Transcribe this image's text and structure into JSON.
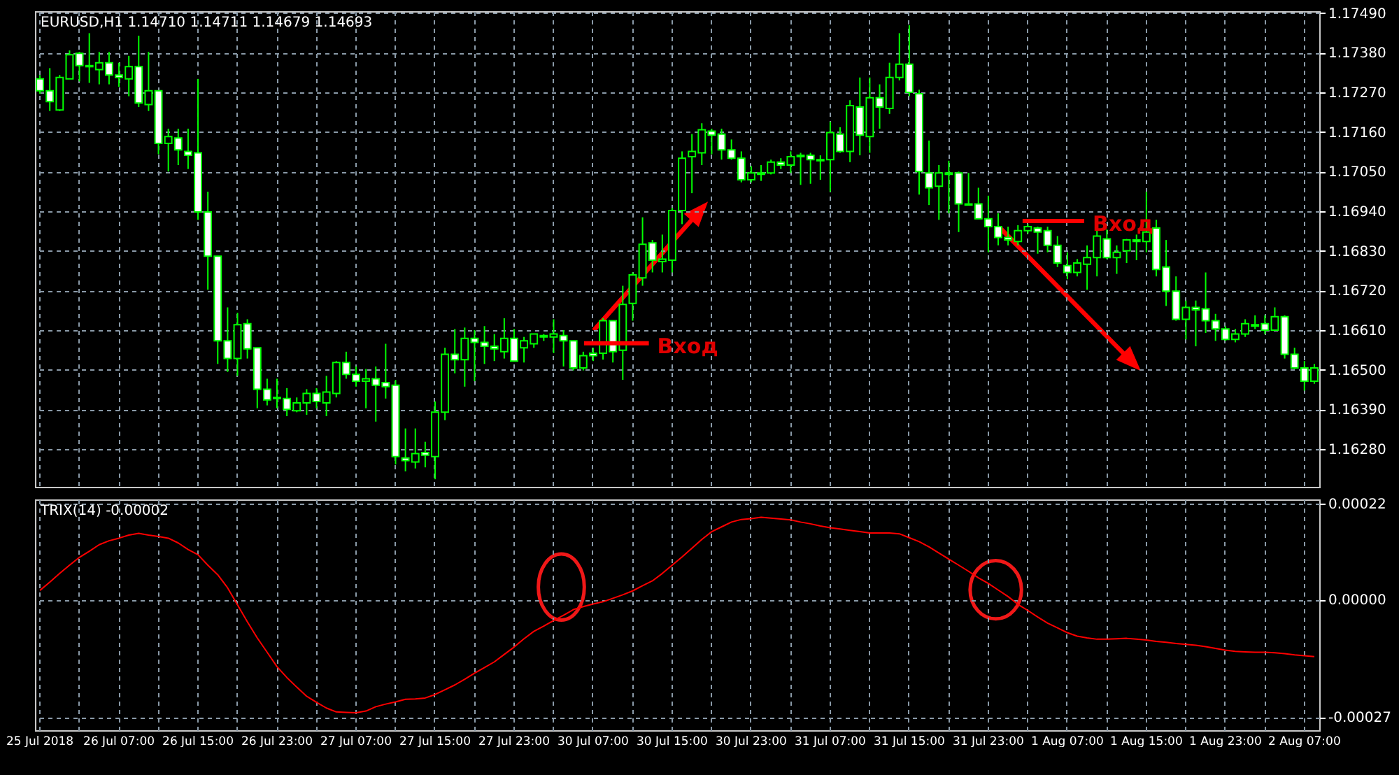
{
  "chart_data": [
    {
      "type": "candlestick",
      "title": "EURUSD,H1  1.14710 1.14711 1.14679 1.14693",
      "color": "#00ff00",
      "categories": [
        "25 Jul 2018",
        null,
        null,
        null,
        null,
        null,
        null,
        null,
        "26 Jul 07:00",
        null,
        null,
        null,
        null,
        null,
        null,
        null,
        "26 Jul 15:00",
        null,
        null,
        null,
        null,
        null,
        null,
        null,
        "26 Jul 23:00",
        null,
        null,
        null,
        null,
        null,
        null,
        null,
        "27 Jul 07:00",
        null,
        null,
        null,
        null,
        null,
        null,
        null,
        "27 Jul 15:00",
        null,
        null,
        null,
        null,
        null,
        null,
        null,
        "27 Jul 23:00",
        null,
        null,
        null,
        null,
        null,
        null,
        null,
        "30 Jul 07:00",
        null,
        null,
        null,
        null,
        null,
        null,
        null,
        "30 Jul 15:00",
        null,
        null,
        null,
        null,
        null,
        null,
        null,
        "30 Jul 23:00",
        null,
        null,
        null,
        null,
        null,
        null,
        null,
        "31 Jul 07:00",
        null,
        null,
        null,
        null,
        null,
        null,
        null,
        "31 Jul 15:00",
        null,
        null,
        null,
        null,
        null,
        null,
        null,
        "31 Jul 23:00",
        null,
        null,
        null,
        null,
        null,
        null,
        null,
        "1 Aug 07:00",
        null,
        null,
        null,
        null,
        null,
        null,
        null,
        "1 Aug 15:00",
        null,
        null,
        null,
        null,
        null,
        null,
        null,
        "1 Aug 23:00",
        null,
        null,
        null,
        null,
        null,
        null,
        null,
        "2 Aug 07:00",
        null
      ],
      "ohlc": [
        [
          1.17307,
          1.17318,
          1.17266,
          1.17274
        ],
        [
          1.17274,
          1.17337,
          1.17218,
          1.17244
        ],
        [
          1.17221,
          1.17318,
          1.17218,
          1.17311
        ],
        [
          1.17307,
          1.17386,
          1.17307,
          1.17374
        ],
        [
          1.17378,
          1.17382,
          1.173,
          1.17344
        ],
        [
          1.17344,
          1.17434,
          1.17296,
          1.17341
        ],
        [
          1.17333,
          1.17382,
          1.17292,
          1.17352
        ],
        [
          1.17352,
          1.17382,
          1.17292,
          1.17318
        ],
        [
          1.17318,
          1.17352,
          1.17285,
          1.17311
        ],
        [
          1.17307,
          1.17371,
          1.17259,
          1.17341
        ],
        [
          1.17341,
          1.17427,
          1.17229,
          1.1724
        ],
        [
          1.17236,
          1.17382,
          1.17218,
          1.17274
        ],
        [
          1.17274,
          1.17274,
          1.17098,
          1.17128
        ],
        [
          1.17128,
          1.17169,
          1.1705,
          1.17147
        ],
        [
          1.17143,
          1.17169,
          1.17068,
          1.1711
        ],
        [
          1.17106,
          1.17169,
          1.17057,
          1.17095
        ],
        [
          1.17102,
          1.17307,
          1.16916,
          1.16938
        ],
        [
          1.16938,
          1.16994,
          1.16722,
          1.16815
        ],
        [
          1.16815,
          1.16815,
          1.16516,
          1.1658
        ],
        [
          1.1658,
          1.16673,
          1.16494,
          1.16531
        ],
        [
          1.16531,
          1.16658,
          1.16483,
          1.16625
        ],
        [
          1.16628,
          1.1664,
          1.16531,
          1.16558
        ],
        [
          1.16561,
          1.16561,
          1.16393,
          1.16446
        ],
        [
          1.16446,
          1.16475,
          1.16401,
          1.16416
        ],
        [
          1.16423,
          1.16475,
          1.16393,
          1.1642
        ],
        [
          1.1642,
          1.16449,
          1.16371,
          1.1639
        ],
        [
          1.16386,
          1.16423,
          1.16382,
          1.16408
        ],
        [
          1.16408,
          1.16446,
          1.16375,
          1.16434
        ],
        [
          1.16434,
          1.16449,
          1.16393,
          1.16412
        ],
        [
          1.16408,
          1.16483,
          1.16371,
          1.16438
        ],
        [
          1.16434,
          1.16524,
          1.16423,
          1.1652
        ],
        [
          1.1652,
          1.1655,
          1.16475,
          1.16487
        ],
        [
          1.16487,
          1.16509,
          1.16453,
          1.16468
        ],
        [
          1.16468,
          1.16502,
          1.16393,
          1.16475
        ],
        [
          1.16475,
          1.16509,
          1.16356,
          1.16457
        ],
        [
          1.16464,
          1.16572,
          1.1642,
          1.16453
        ],
        [
          1.16457,
          1.16472,
          1.16237,
          1.16259
        ],
        [
          1.16255,
          1.16337,
          1.16218,
          1.16248
        ],
        [
          1.16244,
          1.16337,
          1.16226,
          1.16267
        ],
        [
          1.1627,
          1.163,
          1.16229,
          1.16263
        ],
        [
          1.16259,
          1.16412,
          1.16196,
          1.16382
        ],
        [
          1.16382,
          1.16561,
          1.1636,
          1.16543
        ],
        [
          1.16543,
          1.16613,
          1.1649,
          1.16528
        ],
        [
          1.16528,
          1.16617,
          1.16453,
          1.16587
        ],
        [
          1.16587,
          1.1661,
          1.16468,
          1.16576
        ],
        [
          1.16576,
          1.16621,
          1.16516,
          1.16565
        ],
        [
          1.16565,
          1.16599,
          1.16524,
          1.16558
        ],
        [
          1.1655,
          1.16643,
          1.16531,
          1.16587
        ],
        [
          1.16587,
          1.16613,
          1.16524,
          1.16524
        ],
        [
          1.16561,
          1.16591,
          1.1652,
          1.1658
        ],
        [
          1.16572,
          1.16599,
          1.16561,
          1.16599
        ],
        [
          1.16595,
          1.16599,
          1.1658,
          1.16591
        ],
        [
          1.16591,
          1.1664,
          1.16546,
          1.16599
        ],
        [
          1.16595,
          1.1661,
          1.16509,
          1.1658
        ],
        [
          1.1658,
          1.1658,
          1.16498,
          1.16505
        ],
        [
          1.16505,
          1.1655,
          1.16498,
          1.16539
        ],
        [
          1.16546,
          1.16561,
          1.16524,
          1.16539
        ],
        [
          1.16546,
          1.16643,
          1.16528,
          1.16636
        ],
        [
          1.16636,
          1.16636,
          1.1652,
          1.1655
        ],
        [
          1.16554,
          1.16733,
          1.16472,
          1.16681
        ],
        [
          1.16684,
          1.1677,
          1.16636,
          1.16763
        ],
        [
          1.16755,
          1.16923,
          1.16733,
          1.16848
        ],
        [
          1.16852,
          1.1686,
          1.1677,
          1.16804
        ],
        [
          1.168,
          1.16875,
          1.1677,
          1.16807
        ],
        [
          1.16804,
          1.16949,
          1.1677,
          1.16942
        ],
        [
          1.16942,
          1.17106,
          1.16904,
          1.17087
        ],
        [
          1.17091,
          1.17154,
          1.1699,
          1.17106
        ],
        [
          1.17102,
          1.17184,
          1.17068,
          1.17166
        ],
        [
          1.17162,
          1.17169,
          1.17098,
          1.17151
        ],
        [
          1.17154,
          1.17169,
          1.17083,
          1.1711
        ],
        [
          1.1711,
          1.17139,
          1.17083,
          1.17087
        ],
        [
          1.17087,
          1.17106,
          1.1702,
          1.17027
        ],
        [
          1.17027,
          1.17065,
          1.1702,
          1.17046
        ],
        [
          1.17042,
          1.17068,
          1.17024,
          1.17046
        ],
        [
          1.17046,
          1.17083,
          1.17042,
          1.17076
        ],
        [
          1.17076,
          1.17087,
          1.17057,
          1.17068
        ],
        [
          1.17068,
          1.17106,
          1.17046,
          1.17091
        ],
        [
          1.17095,
          1.17102,
          1.17013,
          1.17091
        ],
        [
          1.17095,
          1.17102,
          1.17016,
          1.17083
        ],
        [
          1.17083,
          1.17095,
          1.17027,
          1.1708
        ],
        [
          1.17083,
          1.17188,
          1.16994,
          1.17158
        ],
        [
          1.17154,
          1.17173,
          1.17102,
          1.17106
        ],
        [
          1.17106,
          1.17248,
          1.17076,
          1.17233
        ],
        [
          1.17229,
          1.17311,
          1.17095,
          1.17151
        ],
        [
          1.17147,
          1.17311,
          1.17102,
          1.17255
        ],
        [
          1.17255,
          1.17292,
          1.17169,
          1.17229
        ],
        [
          1.17225,
          1.17352,
          1.1721,
          1.17311
        ],
        [
          1.17311,
          1.17434,
          1.17303,
          1.17348
        ],
        [
          1.17348,
          1.17456,
          1.17259,
          1.1727
        ],
        [
          1.17266,
          1.17277,
          1.16986,
          1.1705
        ],
        [
          1.17046,
          1.17136,
          1.16957,
          1.17005
        ],
        [
          1.17009,
          1.17068,
          1.16916,
          1.17046
        ],
        [
          1.17046,
          1.1708,
          1.16934,
          1.17042
        ],
        [
          1.17046,
          1.1705,
          1.16882,
          1.1696
        ],
        [
          1.1696,
          1.17046,
          1.16957,
          1.16957
        ],
        [
          1.1696,
          1.17005,
          1.16919,
          1.16919
        ],
        [
          1.16919,
          1.16983,
          1.16826,
          1.16897
        ],
        [
          1.16897,
          1.16934,
          1.16845,
          1.16867
        ],
        [
          1.16867,
          1.16897,
          1.16845,
          1.1686
        ],
        [
          1.16856,
          1.16901,
          1.16845,
          1.16886
        ],
        [
          1.16886,
          1.16904,
          1.16878,
          1.16897
        ],
        [
          1.16893,
          1.16897,
          1.16822,
          1.16882
        ],
        [
          1.16886,
          1.16897,
          1.16826,
          1.16845
        ],
        [
          1.16845,
          1.16871,
          1.16785,
          1.16796
        ],
        [
          1.16789,
          1.16826,
          1.16751,
          1.1677
        ],
        [
          1.1677,
          1.16807,
          1.16759,
          1.16796
        ],
        [
          1.16793,
          1.16845,
          1.16722,
          1.16811
        ],
        [
          1.16811,
          1.16897,
          1.16759,
          1.16871
        ],
        [
          1.16863,
          1.16889,
          1.16807,
          1.16811
        ],
        [
          1.16811,
          1.16845,
          1.16766,
          1.16826
        ],
        [
          1.1683,
          1.16863,
          1.16796,
          1.1686
        ],
        [
          1.1686,
          1.16875,
          1.16804,
          1.16856
        ],
        [
          1.16856,
          1.16994,
          1.16826,
          1.16882
        ],
        [
          1.16893,
          1.16916,
          1.16759,
          1.16778
        ],
        [
          1.16785,
          1.1686,
          1.16677,
          1.16718
        ],
        [
          1.16718,
          1.16759,
          1.16636,
          1.1664
        ],
        [
          1.1664,
          1.16692,
          1.16584,
          1.16673
        ],
        [
          1.16673,
          1.16692,
          1.16565,
          1.16666
        ],
        [
          1.16669,
          1.1677,
          1.16602,
          1.16636
        ],
        [
          1.16636,
          1.16655,
          1.1658,
          1.16613
        ],
        [
          1.16613,
          1.16621,
          1.1658,
          1.16584
        ],
        [
          1.16584,
          1.16613,
          1.16576,
          1.16599
        ],
        [
          1.16599,
          1.1664,
          1.16591,
          1.16628
        ],
        [
          1.16625,
          1.16651,
          1.16613,
          1.16621
        ],
        [
          1.16628,
          1.16651,
          1.16599,
          1.1661
        ],
        [
          1.1661,
          1.16673,
          1.1661,
          1.16647
        ],
        [
          1.16647,
          1.16651,
          1.16531,
          1.16543
        ],
        [
          1.16543,
          1.16561,
          1.16502,
          1.16505
        ],
        [
          1.16505,
          1.16524,
          1.16442,
          1.16468
        ],
        [
          1.16468,
          1.16516,
          1.16461,
          1.16505
        ]
      ],
      "ylim": [
        1.16175,
        1.17495
      ],
      "yticks": [
        {
          "value": 1.1628,
          "label": "1.16280"
        },
        {
          "value": 1.1639,
          "label": "1.16390"
        },
        {
          "value": 1.165,
          "label": "1.16500"
        },
        {
          "value": 1.1661,
          "label": "1.16610"
        },
        {
          "value": 1.1672,
          "label": "1.16720"
        },
        {
          "value": 1.1683,
          "label": "1.16830"
        },
        {
          "value": 1.1694,
          "label": "1.16940"
        },
        {
          "value": 1.1705,
          "label": "1.17050"
        },
        {
          "value": 1.1716,
          "label": "1.17160"
        },
        {
          "value": 1.1727,
          "label": "1.17270"
        },
        {
          "value": 1.1738,
          "label": "1.17380"
        },
        {
          "value": 1.1749,
          "label": "1.17490"
        }
      ],
      "grid": true,
      "tick_labels": "y",
      "annotations": [
        "Вход",
        "Вход"
      ]
    },
    {
      "type": "line",
      "title": "TRIX(14) -0.00002",
      "color": "#ff0000",
      "categories": [
        "25 Jul 2018",
        null,
        null,
        null,
        null,
        null,
        null,
        null,
        "26 Jul 07:00",
        null,
        null,
        null,
        null,
        null,
        null,
        null,
        "26 Jul 15:00",
        null,
        null,
        null,
        null,
        null,
        null,
        null,
        "26 Jul 23:00",
        null,
        null,
        null,
        null,
        null,
        null,
        null,
        "27 Jul 07:00",
        null,
        null,
        null,
        null,
        null,
        null,
        null,
        "27 Jul 15:00",
        null,
        null,
        null,
        null,
        null,
        null,
        null,
        "27 Jul 23:00",
        null,
        null,
        null,
        null,
        null,
        null,
        null,
        "30 Jul 07:00",
        null,
        null,
        null,
        null,
        null,
        null,
        null,
        "30 Jul 15:00",
        null,
        null,
        null,
        null,
        null,
        null,
        null,
        "30 Jul 23:00",
        null,
        null,
        null,
        null,
        null,
        null,
        null,
        "31 Jul 07:00",
        null,
        null,
        null,
        null,
        null,
        null,
        null,
        "31 Jul 15:00",
        null,
        null,
        null,
        null,
        null,
        null,
        null,
        "31 Jul 23:00",
        null,
        null,
        null,
        null,
        null,
        null,
        null,
        "1 Aug 07:00",
        null,
        null,
        null,
        null,
        null,
        null,
        null,
        "1 Aug 15:00",
        null,
        null,
        null,
        null,
        null,
        null,
        null,
        "1 Aug 23:00",
        null,
        null,
        null,
        null,
        null,
        null,
        null,
        "2 Aug 07:00",
        null
      ],
      "values": [
        2.1e-05,
        4e-05,
        6e-05,
        7.9e-05,
        9.7e-05,
        0.000111,
        0.000126,
        0.000135,
        0.000141,
        0.000148,
        0.000152,
        0.000148,
        0.000145,
        0.000141,
        0.00013,
        0.000115,
        0.000103,
        7.9e-05,
        5.7e-05,
        2.7e-05,
        -1.2e-05,
        -5.1e-05,
        -8.8e-05,
        -0.000121,
        -0.000154,
        -0.000179,
        -0.000201,
        -0.000222,
        -0.000236,
        -0.000249,
        -0.000258,
        -0.000259,
        -0.00026,
        -0.000256,
        -0.000246,
        -0.00024,
        -0.000235,
        -0.000229,
        -0.000228,
        -0.000226,
        -0.000218,
        -0.000207,
        -0.000196,
        -0.000183,
        -0.000169,
        -0.000156,
        -0.000143,
        -0.000126,
        -0.000109,
        -9e-05,
        -7.3e-05,
        -6.1e-05,
        -4.8e-05,
        -3.6e-05,
        -2.3e-05,
        -1.6e-05,
        -1e-05,
        -5e-06,
        3e-06,
        1.1e-05,
        2e-05,
        3.2e-05,
        4.3e-05,
        6e-05,
        7.9e-05,
        9.8e-05,
        0.000118,
        0.000138,
        0.000156,
        0.000167,
        0.000178,
        0.000184,
        0.000186,
        0.000189,
        0.000187,
        0.000185,
        0.000183,
        0.000178,
        0.000174,
        0.000169,
        0.000165,
        0.000162,
        0.000159,
        0.000156,
        0.000153,
        0.000153,
        0.000153,
        0.000151,
        0.000142,
        0.000133,
        0.000121,
        0.000107,
        9.3e-05,
        7.9e-05,
        6.5e-05,
        5e-05,
        3.7e-05,
        2.2e-05,
        7e-06,
        -1.1e-05,
        -2.5e-05,
        -4e-05,
        -5.4e-05,
        -6.5e-05,
        -7.6e-05,
        -8.4e-05,
        -8.8e-05,
        -9.1e-05,
        -9.1e-05,
        -9e-05,
        -8.9e-05,
        -9.1e-05,
        -9.3e-05,
        -9.6e-05,
        -9.8e-05,
        -0.000101,
        -0.000103,
        -0.000105,
        -0.000108,
        -0.000112,
        -0.000116,
        -0.000119,
        -0.00012,
        -0.000121,
        -0.000121,
        -0.000122,
        -0.000124,
        -0.000127,
        -0.000129,
        -0.000131
      ],
      "ylim": [
        -0.0003,
        0.00023
      ],
      "yticks": [
        {
          "value": -0.00027,
          "label": "-0.00027"
        },
        {
          "value": 0,
          "label": "0.00000"
        },
        {
          "value": 0.00022,
          "label": "0.00022"
        }
      ],
      "grid": true
    }
  ]
}
